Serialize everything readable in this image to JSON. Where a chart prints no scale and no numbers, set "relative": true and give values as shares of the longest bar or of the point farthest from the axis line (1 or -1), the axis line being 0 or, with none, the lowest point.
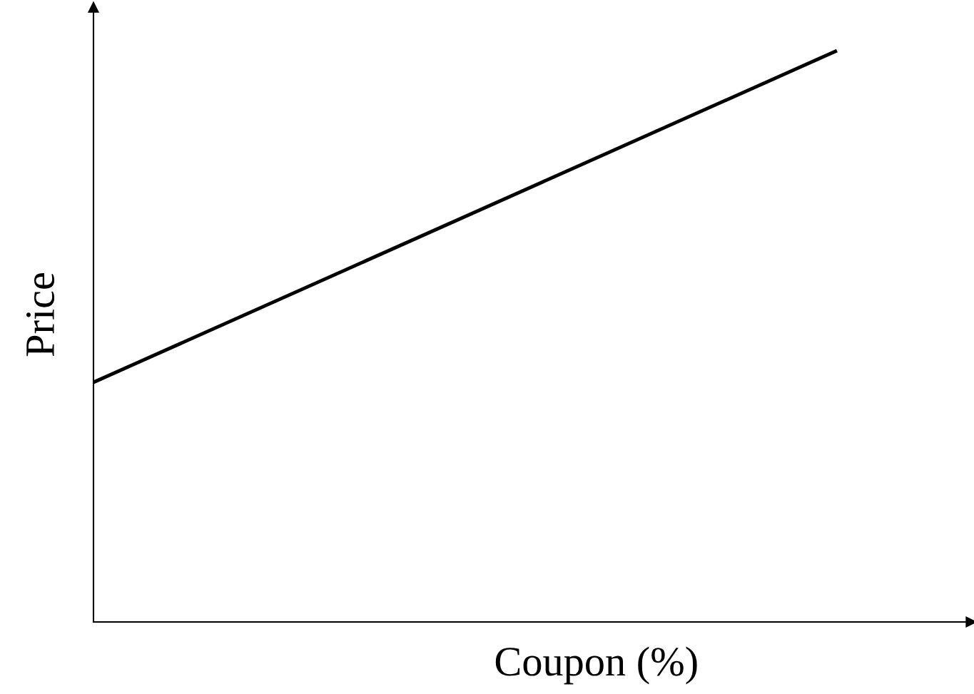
{
  "chart_data": {
    "type": "line",
    "xlabel": "Coupon (%)",
    "ylabel": "Price",
    "categories": [
      null,
      null
    ],
    "relative": true,
    "series": [
      {
        "color": "#000000",
        "values": [
          0.42,
          1
        ]
      }
    ],
    "grid": false,
    "legend": false,
    "marker": "none",
    "line_style": "solid"
  }
}
